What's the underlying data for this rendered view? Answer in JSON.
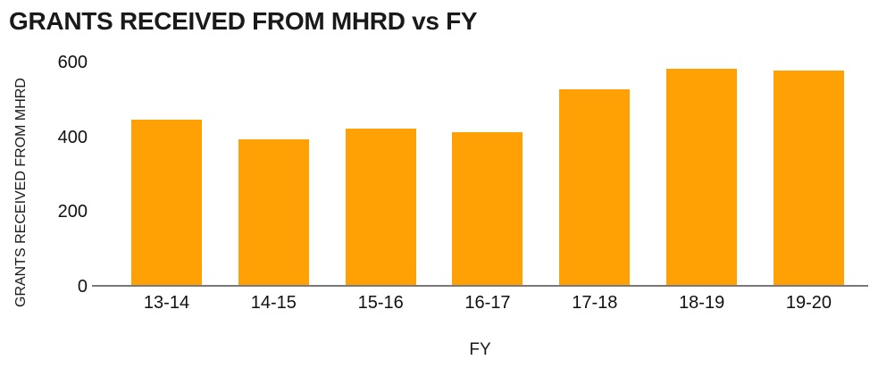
{
  "colors": {
    "bar": "#FFA005",
    "axis_line": "#787878",
    "text": "#1a1a1a"
  },
  "chart_data": {
    "type": "bar",
    "title": "GRANTS RECEIVED FROM MHRD vs FY",
    "xlabel": "FY",
    "ylabel": "GRANTS RECEIVED FROM MHRD",
    "categories": [
      "13-14",
      "14-15",
      "15-16",
      "16-17",
      "17-18",
      "18-19",
      "19-20"
    ],
    "values": [
      447,
      394,
      422,
      411,
      528,
      582,
      578
    ],
    "ylim": [
      0,
      600
    ],
    "yticks": [
      0,
      200,
      400,
      600
    ],
    "grid": false,
    "legend": false,
    "bar_color": "#FFA005"
  }
}
